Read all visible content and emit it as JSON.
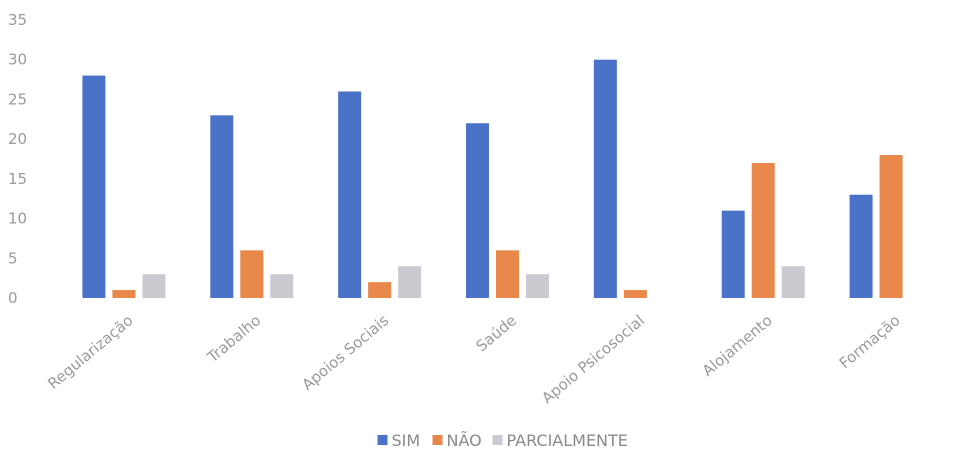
{
  "colors": {
    "sim": "#4a72c8",
    "nao": "#e8884b",
    "parcialmente": "#c9cbd0",
    "text": "#9a9a9a"
  },
  "chart_data": {
    "type": "bar",
    "categories": [
      "Regularização",
      "Trabalho",
      "Apoios Sociais",
      "Saúde",
      "Apoio Psicosocial",
      "Alojamento",
      "Formação"
    ],
    "series": [
      {
        "name": "SIM",
        "values": [
          28,
          23,
          26,
          22,
          30,
          11,
          13
        ]
      },
      {
        "name": "NÃO",
        "values": [
          1,
          6,
          2,
          6,
          1,
          17,
          18
        ]
      },
      {
        "name": "PARCIALMENTE",
        "values": [
          3,
          3,
          4,
          3,
          0,
          4,
          0
        ]
      }
    ],
    "ylim": [
      0,
      35
    ],
    "yticks": [
      0,
      5,
      10,
      15,
      20,
      25,
      30,
      35
    ],
    "grid": false,
    "legend": "bottom"
  }
}
